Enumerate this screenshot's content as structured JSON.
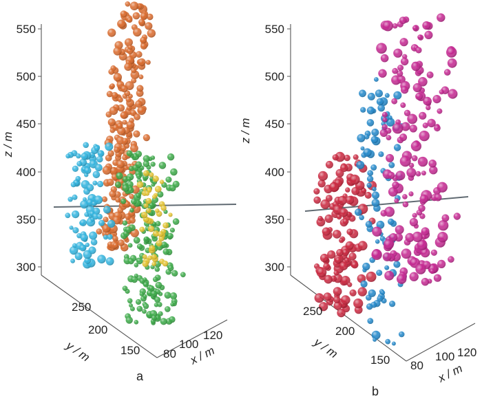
{
  "chart_data": [
    {
      "type": "scatter",
      "panel_label": "a",
      "zlabel": "z / m",
      "ylabel": "y / m",
      "xlabel": "x / m",
      "z_ticks": [
        "300",
        "350",
        "400",
        "450",
        "500",
        "550"
      ],
      "y_ticks": [
        "250",
        "200",
        "150"
      ],
      "x_ticks": [
        "80",
        "100",
        "120"
      ],
      "series": [
        {
          "color": "#d9692a",
          "z_range": [
            300,
            570
          ],
          "approx_count": 220
        },
        {
          "color": "#2fb3de",
          "z_range": [
            300,
            425
          ],
          "approx_count": 90
        },
        {
          "color": "#39a845",
          "z_range": [
            235,
            415
          ],
          "approx_count": 200
        },
        {
          "color": "#e4c22b",
          "z_range": [
            305,
            390
          ],
          "approx_count": 45
        }
      ]
    },
    {
      "type": "scatter",
      "panel_label": "b",
      "zlabel": "z / m",
      "ylabel": "y / m",
      "xlabel": "x / m",
      "z_ticks": [
        "300",
        "350",
        "400",
        "450",
        "500",
        "550"
      ],
      "y_ticks": [
        "250",
        "200",
        "150"
      ],
      "x_ticks": [
        "80",
        "100",
        "120"
      ],
      "series": [
        {
          "color": "#c9253e",
          "z_range": [
            250,
            420
          ],
          "approx_count": 130
        },
        {
          "color": "#1f86c9",
          "z_range": [
            235,
            530
          ],
          "approx_count": 90
        },
        {
          "color": "#c4248f",
          "z_range": [
            285,
            565
          ],
          "approx_count": 170
        }
      ]
    }
  ]
}
